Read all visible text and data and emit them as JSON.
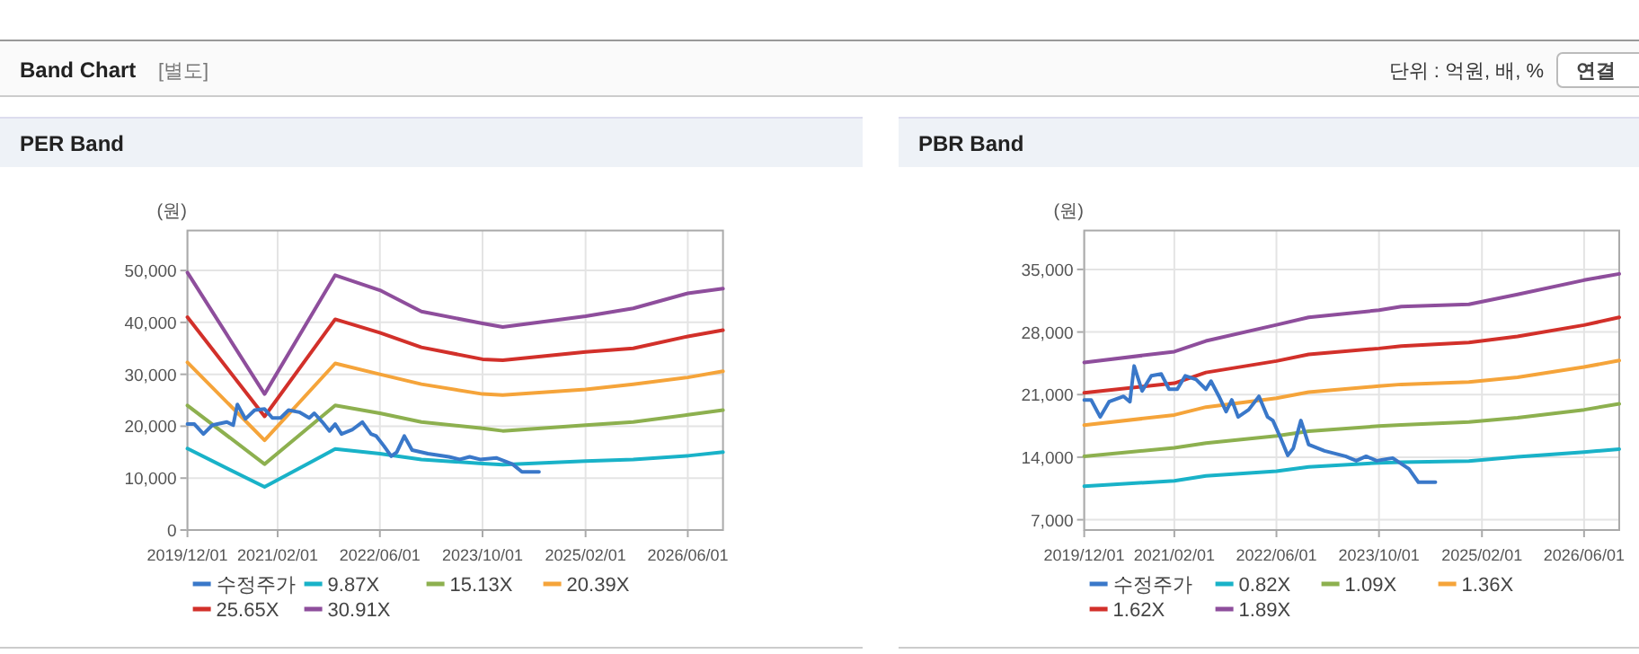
{
  "chart_data": [
    {
      "type": "other",
      "title": "Band Chart",
      "subtitle": "[별도]",
      "annotations": [
        "단위 : 억원, 배, %",
        "연결"
      ]
    },
    {
      "type": "line",
      "title": "PER Band",
      "ylabel": "(원)",
      "grid": true,
      "legend": "bottom",
      "xlim": [
        "2019-12-01",
        "2026-11-15"
      ],
      "xticks": [
        {
          "value": "2019-12-01",
          "label": "2019/12/01"
        },
        {
          "value": "2021-02-01",
          "label": "2021/02/01"
        },
        {
          "value": "2022-06-01",
          "label": "2022/06/01"
        },
        {
          "value": "2023-10-01",
          "label": "2023/10/01"
        },
        {
          "value": "2025-02-01",
          "label": "2025/02/01"
        },
        {
          "value": "2026-06-01",
          "label": "2026/06/01"
        }
      ],
      "ylim": [
        0,
        57700
      ],
      "yticks": [
        0,
        {
          "value": 10000,
          "label": "10,000"
        },
        {
          "value": 20000,
          "label": "20,000"
        },
        {
          "value": 30000,
          "label": "30,000"
        },
        {
          "value": 40000,
          "label": "40,000"
        },
        {
          "value": 50000,
          "label": "50,000"
        }
      ],
      "series": [
        {
          "name": "수정주가",
          "color": "#3a78c9",
          "x": [
            "2019-12-01",
            "2020-01-03",
            "2020-02-15",
            "2020-03-28",
            "2020-06-05",
            "2020-07-05",
            "2020-07-25",
            "2020-09-01",
            "2020-10-15",
            "2020-12-01",
            "2021-01-07",
            "2021-02-15",
            "2021-03-25",
            "2021-05-15",
            "2021-07-01",
            "2021-07-25",
            "2021-09-01",
            "2021-10-05",
            "2021-11-01",
            "2021-12-01",
            "2022-01-20",
            "2022-03-10",
            "2022-04-20",
            "2022-05-15",
            "2022-06-20",
            "2022-07-25",
            "2022-08-20",
            "2022-09-25",
            "2022-11-01",
            "2023-01-15",
            "2023-04-25",
            "2023-06-15",
            "2023-08-01",
            "2023-09-20",
            "2023-12-05",
            "2024-02-20",
            "2024-04-05",
            "2024-06-25"
          ],
          "values": [
            20400,
            20400,
            18500,
            20200,
            20800,
            20200,
            24200,
            21400,
            23100,
            23300,
            21600,
            21600,
            23100,
            22700,
            21600,
            22500,
            20800,
            19100,
            20400,
            18500,
            19300,
            20800,
            18500,
            18100,
            16200,
            14200,
            15000,
            18100,
            15400,
            14700,
            14100,
            13600,
            14100,
            13600,
            13900,
            12700,
            11200,
            11200
          ]
        },
        {
          "name": "9.87X",
          "color": "#19b2c8",
          "x": [
            "2019-12-01",
            "2020-12-01",
            "2021-11-01",
            "2022-06-01",
            "2022-12-15",
            "2023-10-01",
            "2024-01-05",
            "2025-02-01",
            "2025-09-15",
            "2026-06-01",
            "2026-11-15"
          ],
          "values": [
            15700,
            8300,
            15600,
            14700,
            13600,
            12800,
            12600,
            13300,
            13600,
            14300,
            15000
          ]
        },
        {
          "name": "15.13X",
          "color": "#8db04f",
          "x": [
            "2019-12-01",
            "2020-12-01",
            "2021-11-01",
            "2022-06-01",
            "2022-12-15",
            "2023-10-01",
            "2024-01-05",
            "2025-02-01",
            "2025-09-15",
            "2026-06-01",
            "2026-11-15"
          ],
          "values": [
            24000,
            12700,
            24000,
            22500,
            20800,
            19600,
            19100,
            20200,
            20800,
            22200,
            23100
          ]
        },
        {
          "name": "20.39X",
          "color": "#f5a43a",
          "x": [
            "2019-12-01",
            "2020-12-01",
            "2021-11-01",
            "2022-06-01",
            "2022-12-15",
            "2023-10-01",
            "2024-01-05",
            "2025-02-01",
            "2025-09-15",
            "2026-06-01",
            "2026-11-15"
          ],
          "values": [
            32300,
            17300,
            32100,
            30000,
            28100,
            26200,
            26000,
            27100,
            28100,
            29400,
            30600
          ]
        },
        {
          "name": "25.65X",
          "color": "#d2302a",
          "x": [
            "2019-12-01",
            "2020-12-01",
            "2021-11-01",
            "2022-06-01",
            "2022-12-15",
            "2023-10-01",
            "2024-01-05",
            "2025-02-01",
            "2025-09-15",
            "2026-06-01",
            "2026-11-15"
          ],
          "values": [
            41000,
            21900,
            40600,
            38000,
            35200,
            32900,
            32700,
            34300,
            35000,
            37300,
            38500
          ]
        },
        {
          "name": "30.91X",
          "color": "#8e4e9c",
          "x": [
            "2019-12-01",
            "2020-12-01",
            "2021-11-01",
            "2022-06-01",
            "2022-12-15",
            "2023-10-01",
            "2024-01-05",
            "2025-02-01",
            "2025-09-15",
            "2026-06-01",
            "2026-11-15"
          ],
          "values": [
            49600,
            26200,
            49100,
            46200,
            42100,
            39800,
            39100,
            41200,
            42700,
            45600,
            46500
          ]
        }
      ]
    },
    {
      "type": "line",
      "title": "PBR Band",
      "ylabel": "(원)",
      "grid": true,
      "legend": "bottom",
      "xlim": [
        "2019-12-01",
        "2026-11-15"
      ],
      "xticks": [
        {
          "value": "2019-12-01",
          "label": "2019/12/01"
        },
        {
          "value": "2021-02-01",
          "label": "2021/02/01"
        },
        {
          "value": "2022-06-01",
          "label": "2022/06/01"
        },
        {
          "value": "2023-10-01",
          "label": "2023/10/01"
        },
        {
          "value": "2025-02-01",
          "label": "2025/02/01"
        },
        {
          "value": "2026-06-01",
          "label": "2026/06/01"
        }
      ],
      "ylim": [
        5850,
        39350
      ],
      "yticks": [
        {
          "value": 7000,
          "label": "7,000"
        },
        {
          "value": 14000,
          "label": "14,000"
        },
        {
          "value": 21000,
          "label": "21,000"
        },
        {
          "value": 28000,
          "label": "28,000"
        },
        {
          "value": 35000,
          "label": "35,000"
        }
      ],
      "series": [
        {
          "name": "수정주가",
          "color": "#3a78c9",
          "x": [
            "2019-12-01",
            "2020-01-03",
            "2020-02-15",
            "2020-03-28",
            "2020-06-05",
            "2020-07-05",
            "2020-07-25",
            "2020-09-01",
            "2020-10-15",
            "2020-12-01",
            "2021-01-07",
            "2021-02-15",
            "2021-03-25",
            "2021-05-15",
            "2021-07-01",
            "2021-07-25",
            "2021-09-01",
            "2021-10-05",
            "2021-11-01",
            "2021-12-01",
            "2022-01-20",
            "2022-03-10",
            "2022-04-20",
            "2022-05-15",
            "2022-06-20",
            "2022-07-25",
            "2022-08-20",
            "2022-09-25",
            "2022-11-01",
            "2023-01-15",
            "2023-04-25",
            "2023-06-15",
            "2023-08-01",
            "2023-09-20",
            "2023-12-05",
            "2024-02-20",
            "2024-04-05",
            "2024-06-25"
          ],
          "values": [
            20400,
            20400,
            18500,
            20200,
            20800,
            20200,
            24200,
            21400,
            23100,
            23300,
            21600,
            21600,
            23100,
            22700,
            21600,
            22500,
            20800,
            19100,
            20400,
            18500,
            19300,
            20800,
            18500,
            18100,
            16200,
            14200,
            15000,
            18100,
            15400,
            14700,
            14100,
            13600,
            14100,
            13600,
            13900,
            12700,
            11200,
            11200
          ]
        },
        {
          "name": "0.82X",
          "color": "#19b2c8",
          "x": [
            "2019-12-01",
            "2021-02-01",
            "2021-07-01",
            "2022-06-01",
            "2022-11-01",
            "2023-10-01",
            "2024-01-15",
            "2024-12-01",
            "2025-07-20",
            "2026-06-01",
            "2026-11-15"
          ],
          "values": [
            10750,
            11350,
            11900,
            12430,
            12900,
            13370,
            13430,
            13570,
            14030,
            14570,
            14900
          ]
        },
        {
          "name": "1.09X",
          "color": "#8db04f",
          "x": [
            "2019-12-01",
            "2021-02-01",
            "2021-07-01",
            "2022-06-01",
            "2022-11-01",
            "2023-10-01",
            "2024-01-15",
            "2024-12-01",
            "2025-07-20",
            "2026-06-01",
            "2026-11-15"
          ],
          "values": [
            14100,
            15040,
            15580,
            16380,
            16900,
            17480,
            17600,
            17940,
            18400,
            19300,
            19970
          ]
        },
        {
          "name": "1.36X",
          "color": "#f5a43a",
          "x": [
            "2019-12-01",
            "2021-02-01",
            "2021-07-01",
            "2022-06-01",
            "2022-11-01",
            "2023-10-01",
            "2024-01-15",
            "2024-12-01",
            "2025-07-20",
            "2026-06-01",
            "2026-11-15"
          ],
          "values": [
            17580,
            18720,
            19600,
            20600,
            21270,
            21940,
            22140,
            22400,
            22940,
            24080,
            24820
          ]
        },
        {
          "name": "1.62X",
          "color": "#d2302a",
          "x": [
            "2019-12-01",
            "2021-02-01",
            "2021-07-01",
            "2022-06-01",
            "2022-11-01",
            "2023-10-01",
            "2024-01-15",
            "2024-12-01",
            "2025-07-20",
            "2026-06-01",
            "2026-11-15"
          ],
          "values": [
            21200,
            22270,
            23470,
            24750,
            25490,
            26160,
            26430,
            26830,
            27500,
            28770,
            29640
          ]
        },
        {
          "name": "1.89X",
          "color": "#8e4e9c",
          "x": [
            "2019-12-01",
            "2021-02-01",
            "2021-07-01",
            "2022-06-01",
            "2022-11-01",
            "2023-10-01",
            "2024-01-15",
            "2024-12-01",
            "2025-07-20",
            "2026-06-01",
            "2026-11-15"
          ],
          "values": [
            24600,
            25800,
            27000,
            28800,
            29640,
            30440,
            30850,
            31100,
            32200,
            33800,
            34500
          ]
        }
      ]
    }
  ]
}
